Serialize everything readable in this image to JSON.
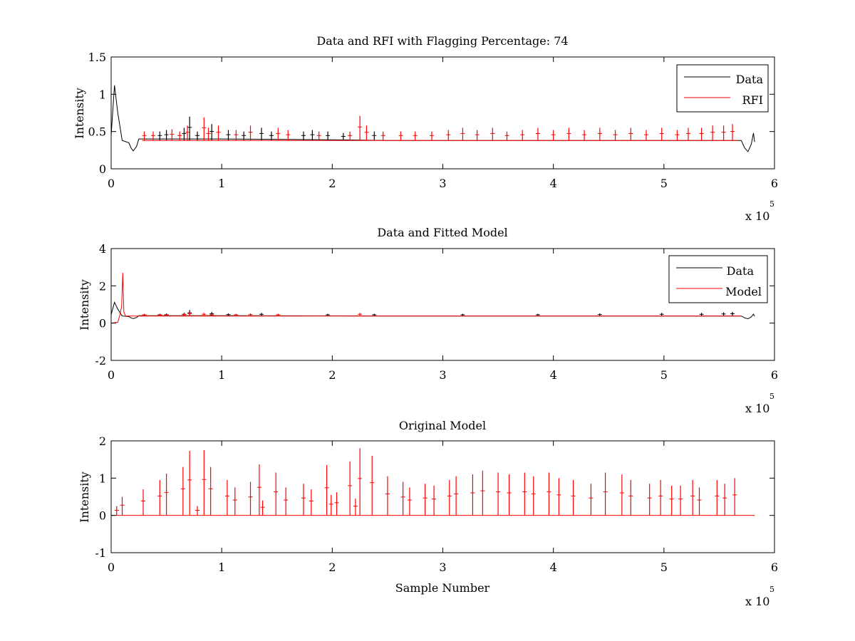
{
  "chart_data": [
    {
      "type": "line",
      "title": "Data and RFI with Flagging Percentage: 74",
      "xlabel": "",
      "ylabel": "Intensity",
      "xlim": [
        0,
        600000
      ],
      "ylim": [
        0,
        1.5
      ],
      "xticks": [
        0,
        100000,
        200000,
        300000,
        400000,
        500000,
        600000
      ],
      "xtick_labels": [
        "0",
        "1",
        "2",
        "3",
        "4",
        "5",
        "6"
      ],
      "yticks": [
        0,
        0.5,
        1,
        1.5
      ],
      "ytick_labels": [
        "0",
        "0.5",
        "1",
        "1.5"
      ],
      "x_multiplier": {
        "base": "x 10",
        "power": "5"
      },
      "grid": false,
      "legend_position": "top-right",
      "series": [
        {
          "name": "Data",
          "color": "#000000",
          "points": [
            [
              0,
              0.45
            ],
            [
              3000,
              1.12
            ],
            [
              6000,
              0.75
            ],
            [
              10000,
              0.38
            ],
            [
              16000,
              0.35
            ],
            [
              18000,
              0.28
            ],
            [
              20000,
              0.24
            ],
            [
              23000,
              0.3
            ],
            [
              25000,
              0.4
            ],
            [
              100000,
              0.4
            ],
            [
              200000,
              0.39
            ],
            [
              250000,
              0.38
            ],
            [
              570000,
              0.38
            ],
            [
              573000,
              0.28
            ],
            [
              576000,
              0.23
            ],
            [
              579000,
              0.33
            ],
            [
              581000,
              0.48
            ],
            [
              582000,
              0.36
            ]
          ],
          "spikes": [
            [
              44000,
              0.5
            ],
            [
              50000,
              0.52
            ],
            [
              66000,
              0.55
            ],
            [
              71000,
              0.7
            ],
            [
              78000,
              0.5
            ],
            [
              91000,
              0.6
            ],
            [
              106000,
              0.52
            ],
            [
              120000,
              0.5
            ],
            [
              136000,
              0.55
            ],
            [
              145000,
              0.5
            ],
            [
              174000,
              0.5
            ],
            [
              182000,
              0.52
            ],
            [
              196000,
              0.5
            ],
            [
              210000,
              0.48
            ],
            [
              238000,
              0.5
            ]
          ]
        },
        {
          "name": "RFI",
          "color": "#ff0000",
          "baseline": 0.38,
          "spikes": [
            [
              30000,
              0.5
            ],
            [
              38000,
              0.5
            ],
            [
              55000,
              0.53
            ],
            [
              62000,
              0.5
            ],
            [
              69000,
              0.58
            ],
            [
              84000,
              0.69
            ],
            [
              88000,
              0.55
            ],
            [
              97000,
              0.58
            ],
            [
              113000,
              0.52
            ],
            [
              126000,
              0.58
            ],
            [
              151000,
              0.55
            ],
            [
              160000,
              0.52
            ],
            [
              188000,
              0.5
            ],
            [
              216000,
              0.5
            ],
            [
              225000,
              0.71
            ],
            [
              231000,
              0.58
            ],
            [
              246000,
              0.5
            ],
            [
              262000,
              0.5
            ],
            [
              275000,
              0.5
            ],
            [
              290000,
              0.5
            ],
            [
              305000,
              0.52
            ],
            [
              318000,
              0.55
            ],
            [
              331000,
              0.52
            ],
            [
              345000,
              0.55
            ],
            [
              358000,
              0.5
            ],
            [
              372000,
              0.52
            ],
            [
              386000,
              0.55
            ],
            [
              400000,
              0.52
            ],
            [
              414000,
              0.55
            ],
            [
              428000,
              0.52
            ],
            [
              442000,
              0.55
            ],
            [
              456000,
              0.52
            ],
            [
              470000,
              0.55
            ],
            [
              484000,
              0.52
            ],
            [
              498000,
              0.55
            ],
            [
              512000,
              0.52
            ],
            [
              522000,
              0.55
            ],
            [
              534000,
              0.55
            ],
            [
              544000,
              0.58
            ],
            [
              554000,
              0.58
            ],
            [
              562000,
              0.6
            ]
          ]
        }
      ]
    },
    {
      "type": "line",
      "title": "Data and Fitted Model",
      "xlabel": "",
      "ylabel": "Intensity",
      "xlim": [
        0,
        600000
      ],
      "ylim": [
        -2,
        4
      ],
      "xticks": [
        0,
        100000,
        200000,
        300000,
        400000,
        500000,
        600000
      ],
      "xtick_labels": [
        "0",
        "1",
        "2",
        "3",
        "4",
        "5",
        "6"
      ],
      "yticks": [
        -2,
        0,
        2,
        4
      ],
      "ytick_labels": [
        "-2",
        "0",
        "2",
        "4"
      ],
      "x_multiplier": {
        "base": "x 10",
        "power": "5"
      },
      "grid": false,
      "legend_position": "top-right",
      "series": [
        {
          "name": "Data",
          "color": "#000000",
          "points": [
            [
              0,
              0.45
            ],
            [
              3000,
              1.12
            ],
            [
              6000,
              0.75
            ],
            [
              10000,
              0.38
            ],
            [
              16000,
              0.35
            ],
            [
              18000,
              0.28
            ],
            [
              20000,
              0.24
            ],
            [
              23000,
              0.3
            ],
            [
              25000,
              0.4
            ],
            [
              100000,
              0.4
            ],
            [
              200000,
              0.39
            ],
            [
              250000,
              0.38
            ],
            [
              570000,
              0.38
            ],
            [
              573000,
              0.28
            ],
            [
              576000,
              0.23
            ],
            [
              579000,
              0.33
            ],
            [
              581000,
              0.48
            ],
            [
              582000,
              0.36
            ]
          ],
          "spikes": [
            [
              44000,
              0.5
            ],
            [
              50000,
              0.52
            ],
            [
              66000,
              0.55
            ],
            [
              71000,
              0.7
            ],
            [
              91000,
              0.6
            ],
            [
              106000,
              0.52
            ],
            [
              136000,
              0.55
            ],
            [
              196000,
              0.5
            ],
            [
              238000,
              0.5
            ],
            [
              318000,
              0.5
            ],
            [
              386000,
              0.5
            ],
            [
              442000,
              0.52
            ],
            [
              498000,
              0.55
            ],
            [
              534000,
              0.55
            ],
            [
              554000,
              0.58
            ],
            [
              562000,
              0.6
            ]
          ]
        },
        {
          "name": "Model",
          "color": "#ff0000",
          "points": [
            [
              0,
              0
            ],
            [
              6000,
              0.05
            ],
            [
              8000,
              0.45
            ],
            [
              9500,
              0.9
            ],
            [
              10500,
              2.7
            ],
            [
              11500,
              0.6
            ],
            [
              13000,
              0.38
            ],
            [
              570000,
              0.38
            ]
          ],
          "spikes": [
            [
              30000,
              0.5
            ],
            [
              44000,
              0.48
            ],
            [
              50000,
              0.5
            ],
            [
              66000,
              0.52
            ],
            [
              71000,
              0.6
            ],
            [
              84000,
              0.55
            ],
            [
              91000,
              0.5
            ],
            [
              113000,
              0.5
            ],
            [
              126000,
              0.52
            ],
            [
              151000,
              0.5
            ],
            [
              225000,
              0.55
            ]
          ]
        }
      ]
    },
    {
      "type": "line",
      "title": "Original Model",
      "xlabel": "Sample Number",
      "ylabel": "Intensity",
      "xlim": [
        0,
        600000
      ],
      "ylim": [
        -1,
        2
      ],
      "xticks": [
        0,
        100000,
        200000,
        300000,
        400000,
        500000,
        600000
      ],
      "xtick_labels": [
        "0",
        "1",
        "2",
        "3",
        "4",
        "5",
        "6"
      ],
      "yticks": [
        -1,
        0,
        1,
        2
      ],
      "ytick_labels": [
        "-1",
        "0",
        "1",
        "2"
      ],
      "x_multiplier": {
        "base": "x 10",
        "power": "5"
      },
      "grid": false,
      "legend_position": "none",
      "series": [
        {
          "name": "",
          "color": "#ff0000",
          "baseline": 0,
          "range": [
            0,
            582000
          ],
          "spikes": [
            [
              5000,
              0.25
            ],
            [
              10000,
              0.5
            ],
            [
              29000,
              0.7
            ],
            [
              44000,
              0.95
            ],
            [
              50000,
              1.12
            ],
            [
              65000,
              1.3
            ],
            [
              71000,
              1.73
            ],
            [
              78000,
              0.25
            ],
            [
              84000,
              1.75
            ],
            [
              90000,
              1.3
            ],
            [
              105000,
              0.95
            ],
            [
              112000,
              0.75
            ],
            [
              126000,
              0.9
            ],
            [
              134000,
              1.37
            ],
            [
              137000,
              0.4
            ],
            [
              149000,
              1.15
            ],
            [
              158000,
              0.75
            ],
            [
              174000,
              0.85
            ],
            [
              181000,
              0.7
            ],
            [
              195000,
              1.35
            ],
            [
              199000,
              0.55
            ],
            [
              204000,
              0.62
            ],
            [
              216000,
              1.45
            ],
            [
              221000,
              0.45
            ],
            [
              225000,
              1.8
            ],
            [
              236000,
              1.6
            ],
            [
              250000,
              1.05
            ],
            [
              264000,
              0.9
            ],
            [
              270000,
              0.75
            ],
            [
              284000,
              0.85
            ],
            [
              292000,
              0.8
            ],
            [
              306000,
              0.95
            ],
            [
              312000,
              1.05
            ],
            [
              327000,
              1.1
            ],
            [
              336000,
              1.2
            ],
            [
              350000,
              1.15
            ],
            [
              360000,
              1.1
            ],
            [
              374000,
              1.15
            ],
            [
              382000,
              1.05
            ],
            [
              396000,
              1.15
            ],
            [
              405000,
              1.0
            ],
            [
              418000,
              0.95
            ],
            [
              434000,
              0.85
            ],
            [
              447000,
              1.15
            ],
            [
              462000,
              1.1
            ],
            [
              470000,
              0.95
            ],
            [
              487000,
              0.85
            ],
            [
              497000,
              0.95
            ],
            [
              507000,
              0.8
            ],
            [
              515000,
              0.8
            ],
            [
              526000,
              0.95
            ],
            [
              532000,
              0.75
            ],
            [
              548000,
              0.95
            ],
            [
              555000,
              0.85
            ],
            [
              564000,
              1.0
            ]
          ]
        }
      ]
    }
  ]
}
